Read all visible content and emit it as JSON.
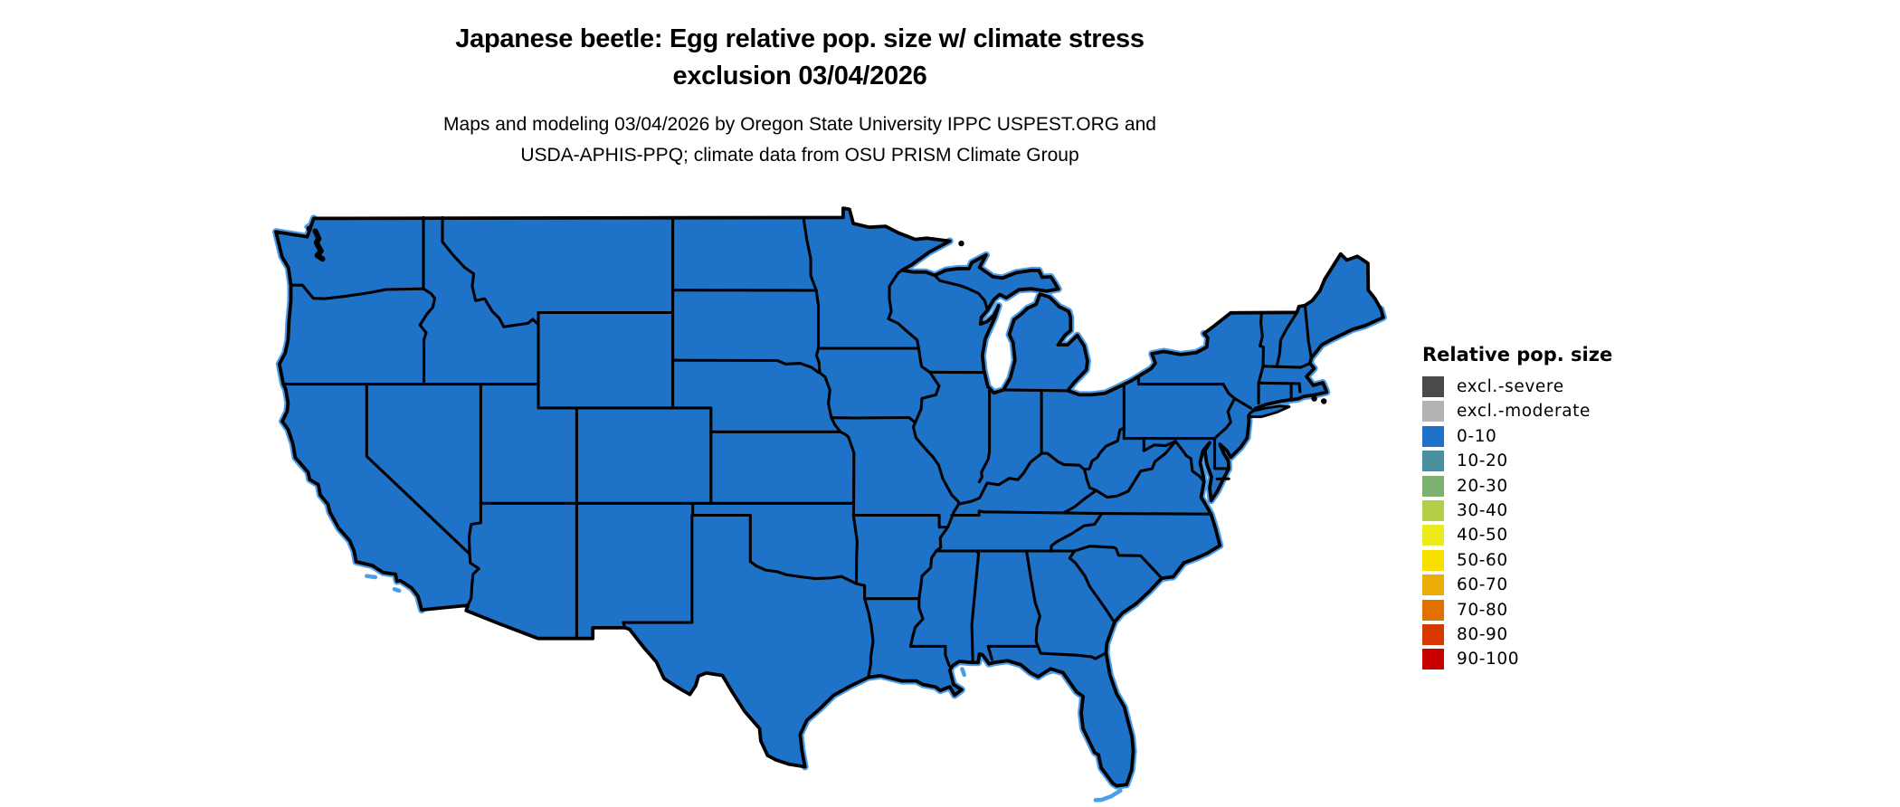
{
  "header": {
    "title_line1": "Japanese beetle: Egg relative pop. size w/ climate stress",
    "title_line2": "exclusion 03/04/2026",
    "subtitle_line1": "Maps and modeling 03/04/2026 by Oregon State University IPPC USPEST.ORG and",
    "subtitle_line2": "USDA-APHIS-PPQ; climate data from OSU PRISM Climate Group"
  },
  "legend": {
    "title": "Relative pop. size",
    "items": [
      {
        "label": "excl.-severe",
        "color": "#4A4A4A"
      },
      {
        "label": "excl.-moderate",
        "color": "#B3B3B3"
      },
      {
        "label": "0-10",
        "color": "#1E72C8"
      },
      {
        "label": "10-20",
        "color": "#4A8F9E"
      },
      {
        "label": "20-30",
        "color": "#7DB171"
      },
      {
        "label": "30-40",
        "color": "#B2CF45"
      },
      {
        "label": "40-50",
        "color": "#E8EC1A"
      },
      {
        "label": "50-60",
        "color": "#F8DF00"
      },
      {
        "label": "60-70",
        "color": "#ECAC07"
      },
      {
        "label": "70-80",
        "color": "#E07200"
      },
      {
        "label": "80-90",
        "color": "#D63A00"
      },
      {
        "label": "90-100",
        "color": "#C80000"
      }
    ]
  },
  "map_data": {
    "type": "choropleth",
    "region": "Contiguous United States (lower 48 states)",
    "variable": "Relative pop. size",
    "date": "03/04/2026",
    "all_states_category": "0-10",
    "land_fill_color": "#1E72C8",
    "state_border_color": "#000000",
    "water_color": "#4D9EE8",
    "background_color": "#FFFFFF"
  }
}
